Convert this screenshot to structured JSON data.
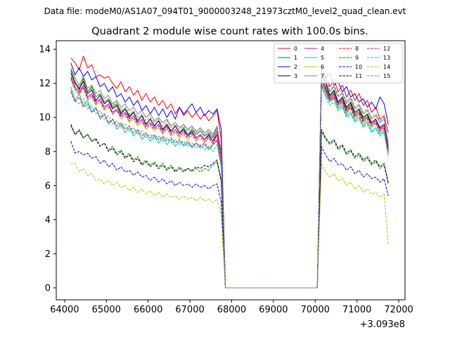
{
  "figure": {
    "suptitle": "Data file: modeM0/AS1A07_094T01_9000003248_21973cztM0_level2_quad_clean.evt",
    "x_offset_label": "+3.093e8"
  },
  "chart_data": {
    "type": "line",
    "title": "Quadrant 2 module wise count rates with 100.0s bins.",
    "xlabel": "",
    "ylabel": "",
    "xlim": [
      63800,
      72150
    ],
    "ylim": [
      -0.7,
      14.5
    ],
    "x_offset": 309300000,
    "xticks": [
      64000,
      65000,
      66000,
      67000,
      68000,
      69000,
      70000,
      71000,
      72000
    ],
    "xtick_labels": [
      "64000",
      "65000",
      "66000",
      "67000",
      "68000",
      "69000",
      "70000",
      "71000",
      "72000"
    ],
    "yticks": [
      0,
      2,
      4,
      6,
      8,
      10,
      12,
      14
    ],
    "ytick_labels": [
      "0",
      "2",
      "4",
      "6",
      "8",
      "10",
      "12",
      "14"
    ],
    "segments": [
      {
        "x_start": 64150,
        "x_end": 67750,
        "step": 100
      },
      {
        "x_start": 70150,
        "x_end": 71750,
        "step": 100
      }
    ],
    "gap": {
      "x_start": 67850,
      "x_end": 70050,
      "value": 0
    },
    "legend_location": "upper right",
    "series": [
      {
        "name": "0",
        "color": "#ff0000",
        "dash": "solid",
        "seg1": [
          13.5,
          13.2,
          12.8,
          13.6,
          12.9,
          13.1,
          12.4,
          12.5,
          12.3,
          12.4,
          12.0,
          11.7,
          12.1,
          11.5,
          11.8,
          11.3,
          11.6,
          11.0,
          11.4,
          10.9,
          11.2,
          10.7,
          11.0,
          10.5,
          10.8,
          10.2,
          10.6,
          10.1,
          10.4,
          10.0,
          10.3,
          9.9,
          10.2,
          9.8,
          10.1,
          10.4,
          8.7
        ],
        "seg2": [
          12.9,
          12.4,
          11.8,
          12.2,
          11.5,
          11.9,
          11.2,
          11.6,
          11.0,
          11.4,
          10.7,
          11.0,
          10.3,
          10.6,
          9.9,
          10.1,
          9.1
        ]
      },
      {
        "name": "1",
        "color": "#008000",
        "dash": "solid",
        "seg1": [
          12.8,
          12.1,
          11.6,
          12.3,
          11.5,
          11.8,
          11.2,
          11.4,
          10.9,
          11.1,
          10.6,
          10.8,
          10.3,
          10.5,
          10.1,
          10.3,
          9.8,
          10.1,
          9.6,
          9.9,
          9.5,
          9.8,
          9.3,
          9.6,
          9.2,
          9.5,
          9.1,
          9.4,
          9.0,
          9.3,
          9.0,
          9.2,
          8.9,
          9.1,
          8.8,
          9.4,
          7.8
        ],
        "seg2": [
          12.2,
          11.8,
          11.2,
          11.5,
          10.8,
          11.1,
          10.5,
          10.8,
          10.2,
          10.4,
          9.9,
          10.1,
          9.6,
          9.8,
          9.3,
          9.5,
          8.3
        ]
      },
      {
        "name": "2",
        "color": "#0000ff",
        "dash": "solid",
        "seg1": [
          13.2,
          12.5,
          12.9,
          12.4,
          12.7,
          12.2,
          12.4,
          11.8,
          12.0,
          11.5,
          11.8,
          11.2,
          11.4,
          10.9,
          11.2,
          10.7,
          11.0,
          10.4,
          10.7,
          10.2,
          10.6,
          10.1,
          10.5,
          10.0,
          10.4,
          9.9,
          10.6,
          10.2,
          10.5,
          10.8,
          10.3,
          10.6,
          10.1,
          10.4,
          10.2,
          10.5,
          9.3
        ],
        "seg2": [
          13.0,
          12.3,
          12.6,
          11.9,
          12.1,
          11.5,
          11.8,
          11.2,
          11.4,
          10.9,
          11.1,
          10.6,
          10.9,
          10.5,
          11.2,
          10.8,
          9.6
        ]
      },
      {
        "name": "3",
        "color": "#000000",
        "dash": "solid",
        "seg1": [
          12.6,
          12.0,
          11.7,
          12.1,
          11.4,
          11.6,
          11.0,
          11.3,
          10.8,
          11.0,
          10.5,
          10.7,
          10.2,
          10.5,
          10.0,
          10.3,
          9.8,
          10.1,
          9.6,
          9.9,
          9.5,
          9.8,
          9.3,
          9.6,
          9.2,
          9.5,
          9.1,
          9.3,
          8.9,
          9.2,
          8.8,
          9.0,
          8.7,
          9.0,
          8.6,
          9.0,
          7.6
        ],
        "seg2": [
          12.5,
          12.0,
          11.3,
          11.6,
          10.9,
          11.2,
          10.6,
          10.9,
          10.3,
          10.5,
          10.0,
          10.2,
          9.7,
          9.9,
          9.4,
          9.6,
          8.2
        ]
      },
      {
        "name": "4",
        "color": "#bf00bf",
        "dash": "solid",
        "seg1": [
          12.4,
          11.8,
          11.5,
          11.9,
          11.2,
          11.4,
          10.9,
          11.1,
          10.6,
          10.8,
          10.3,
          10.5,
          10.1,
          10.3,
          9.9,
          10.1,
          9.7,
          9.9,
          9.5,
          9.7,
          9.4,
          9.6,
          9.2,
          9.5,
          9.1,
          9.3,
          9.0,
          9.2,
          8.9,
          9.1,
          8.8,
          9.0,
          8.7,
          8.9,
          8.6,
          9.2,
          7.7
        ],
        "seg2": [
          12.3,
          11.7,
          11.1,
          11.4,
          10.8,
          11.0,
          10.4,
          10.7,
          10.1,
          10.3,
          9.8,
          10.0,
          9.6,
          9.8,
          9.3,
          9.5,
          8.1
        ]
      },
      {
        "name": "5",
        "color": "#00bfbf",
        "dash": "solid",
        "seg1": [
          11.8,
          11.0,
          11.4,
          10.7,
          11.0,
          10.3,
          10.6,
          9.9,
          10.2,
          9.6,
          9.9,
          9.3,
          9.6,
          9.1,
          9.4,
          8.9,
          9.2,
          8.7,
          9.0,
          8.6,
          8.9,
          8.5,
          8.8,
          8.4,
          8.7,
          8.3,
          8.6,
          8.3,
          8.5,
          8.2,
          8.5,
          8.2,
          8.4,
          8.1,
          8.4,
          8.6,
          7.2
        ],
        "seg2": [
          11.9,
          11.3,
          10.9,
          11.1,
          10.5,
          10.7,
          10.1,
          10.3,
          9.8,
          10.0,
          9.5,
          9.7,
          9.2,
          9.4,
          9.0,
          9.2,
          7.8
        ]
      },
      {
        "name": "6",
        "color": "#bfbf00",
        "dash": "solid",
        "seg1": [
          12.2,
          11.6,
          11.3,
          11.7,
          11.0,
          11.2,
          10.7,
          10.9,
          10.4,
          10.6,
          10.2,
          10.4,
          9.9,
          10.1,
          9.7,
          9.9,
          9.5,
          9.7,
          9.3,
          9.5,
          9.2,
          9.4,
          9.0,
          9.3,
          8.9,
          9.1,
          8.8,
          9.0,
          8.7,
          8.9,
          8.6,
          8.8,
          8.5,
          8.8,
          8.4,
          8.9,
          7.5
        ],
        "seg2": [
          12.0,
          11.5,
          10.9,
          11.2,
          10.6,
          10.8,
          10.2,
          10.5,
          9.9,
          10.1,
          9.6,
          9.8,
          9.4,
          9.6,
          9.1,
          9.3,
          7.9
        ]
      },
      {
        "name": "7",
        "color": "#808080",
        "dash": "solid",
        "seg1": [
          12.9,
          12.3,
          11.9,
          12.4,
          11.7,
          11.9,
          11.4,
          11.6,
          11.1,
          11.3,
          10.8,
          11.0,
          10.6,
          10.8,
          10.4,
          10.6,
          10.2,
          10.4,
          10.0,
          10.2,
          9.8,
          10.0,
          9.7,
          9.9,
          9.5,
          9.7,
          9.4,
          9.6,
          9.3,
          9.5,
          9.2,
          9.4,
          9.1,
          9.3,
          9.0,
          9.5,
          8.0
        ],
        "seg2": [
          12.6,
          12.1,
          11.5,
          11.8,
          11.2,
          11.4,
          10.8,
          11.1,
          10.5,
          10.7,
          10.2,
          10.4,
          9.9,
          10.1,
          9.7,
          9.9,
          8.5
        ]
      },
      {
        "name": "8",
        "color": "#ff0000",
        "dash": "dashed",
        "seg1": [
          11.5,
          10.9,
          11.2,
          10.6,
          10.8,
          10.3,
          10.5,
          10.0,
          10.2,
          9.7,
          9.9,
          9.5,
          9.7,
          9.3,
          9.5,
          9.1,
          9.3,
          8.9,
          9.1,
          8.8,
          9.0,
          8.7,
          8.9,
          8.6,
          8.8,
          8.5,
          8.7,
          8.4,
          8.6,
          8.3,
          8.5,
          8.3,
          8.5,
          8.2,
          8.4,
          8.7,
          7.3
        ],
        "seg2": [
          12.0,
          11.5,
          11.0,
          11.2,
          10.7,
          10.9,
          10.4,
          10.6,
          10.1,
          10.3,
          9.8,
          10.0,
          9.5,
          9.7,
          9.2,
          9.4,
          8.0
        ]
      },
      {
        "name": "9",
        "color": "#008000",
        "dash": "dashed",
        "seg1": [
          9.5,
          9.0,
          9.3,
          8.8,
          9.0,
          8.6,
          8.8,
          8.3,
          8.5,
          8.1,
          8.3,
          7.9,
          8.1,
          7.7,
          7.9,
          7.5,
          7.7,
          7.3,
          7.5,
          7.2,
          7.4,
          7.1,
          7.3,
          7.0,
          7.2,
          6.9,
          7.1,
          6.9,
          7.0,
          6.8,
          7.0,
          6.8,
          7.0,
          6.9,
          7.2,
          7.4,
          6.2
        ],
        "seg2": [
          9.2,
          8.7,
          8.4,
          8.6,
          8.1,
          8.3,
          7.8,
          8.0,
          7.6,
          7.8,
          7.4,
          7.6,
          7.2,
          7.4,
          7.0,
          7.2,
          6.1
        ]
      },
      {
        "name": "10",
        "color": "#0000ff",
        "dash": "dashed",
        "seg1": [
          8.6,
          7.9,
          8.0,
          7.8,
          7.9,
          7.6,
          7.7,
          7.3,
          7.5,
          7.1,
          7.3,
          6.9,
          7.1,
          6.8,
          6.9,
          6.6,
          6.8,
          6.5,
          6.6,
          6.3,
          6.5,
          6.2,
          6.4,
          6.1,
          6.3,
          6.0,
          6.2,
          6.0,
          6.1,
          5.9,
          6.1,
          5.9,
          6.0,
          5.8,
          6.0,
          6.1,
          5.0
        ],
        "seg2": [
          8.3,
          7.8,
          7.4,
          7.6,
          7.2,
          7.3,
          6.9,
          7.1,
          6.7,
          6.9,
          6.5,
          6.7,
          6.4,
          6.5,
          6.2,
          6.4,
          5.4
        ]
      },
      {
        "name": "11",
        "color": "#000000",
        "dash": "dashed",
        "seg1": [
          9.6,
          9.0,
          9.2,
          8.8,
          9.0,
          8.6,
          8.7,
          8.3,
          8.5,
          8.0,
          8.2,
          7.8,
          8.0,
          7.6,
          7.8,
          7.4,
          7.6,
          7.2,
          7.4,
          7.1,
          7.3,
          7.0,
          7.2,
          6.9,
          7.1,
          6.8,
          7.0,
          6.8,
          7.0,
          6.9,
          7.1,
          7.0,
          7.2,
          7.1,
          7.3,
          7.5,
          6.3
        ],
        "seg2": [
          9.3,
          8.8,
          8.5,
          8.7,
          8.2,
          8.4,
          7.9,
          8.1,
          7.7,
          7.9,
          7.5,
          7.7,
          7.3,
          7.5,
          7.1,
          7.3,
          6.2
        ]
      },
      {
        "name": "12",
        "color": "#bf00bf",
        "dash": "dashed",
        "seg1": [
          12.3,
          11.7,
          11.4,
          11.8,
          11.1,
          11.3,
          10.8,
          11.0,
          10.5,
          10.7,
          10.2,
          10.4,
          10.0,
          10.2,
          9.8,
          10.0,
          9.6,
          9.8,
          9.4,
          9.6,
          9.3,
          9.5,
          9.1,
          9.4,
          9.0,
          9.2,
          8.9,
          9.1,
          8.8,
          9.0,
          8.7,
          8.9,
          8.6,
          8.8,
          8.5,
          9.0,
          7.6
        ],
        "seg2": [
          12.2,
          11.6,
          11.0,
          11.3,
          10.7,
          10.9,
          10.3,
          10.6,
          10.0,
          10.2,
          9.7,
          9.9,
          9.5,
          9.7,
          9.2,
          9.4,
          8.0
        ]
      },
      {
        "name": "13",
        "color": "#00bfbf",
        "dash": "dashed",
        "seg1": [
          11.6,
          11.0,
          10.8,
          11.1,
          10.5,
          10.7,
          10.2,
          10.4,
          9.9,
          10.1,
          9.6,
          9.8,
          9.4,
          9.6,
          9.2,
          9.4,
          9.0,
          9.2,
          8.8,
          9.0,
          8.7,
          8.9,
          8.6,
          8.8,
          8.5,
          8.7,
          8.4,
          8.6,
          8.3,
          8.5,
          8.2,
          8.4,
          8.1,
          8.3,
          8.0,
          8.4,
          7.1
        ],
        "seg2": [
          11.8,
          11.2,
          10.7,
          10.9,
          10.4,
          10.6,
          10.0,
          10.2,
          9.7,
          9.9,
          9.4,
          9.6,
          9.1,
          9.3,
          8.9,
          9.1,
          7.7
        ]
      },
      {
        "name": "14",
        "color": "#bfbf00",
        "dash": "dashed",
        "seg1": [
          7.3,
          7.3,
          6.8,
          7.0,
          6.6,
          6.7,
          6.3,
          6.4,
          6.1,
          6.3,
          6.0,
          6.2,
          5.9,
          6.0,
          5.7,
          5.9,
          5.6,
          5.8,
          5.5,
          5.7,
          5.4,
          5.6,
          5.3,
          5.5,
          5.3,
          5.4,
          5.2,
          5.4,
          5.2,
          5.3,
          5.1,
          5.3,
          5.1,
          5.2,
          5.0,
          5.2,
          4.3
        ],
        "seg2": [
          7.3,
          6.8,
          6.5,
          6.7,
          6.3,
          6.4,
          6.0,
          6.2,
          5.8,
          6.0,
          5.6,
          5.8,
          5.5,
          5.6,
          5.3,
          5.5,
          2.5
        ]
      },
      {
        "name": "15",
        "color": "#808080",
        "dash": "dashed",
        "seg1": [
          12.7,
          12.1,
          11.8,
          12.2,
          11.5,
          11.7,
          11.2,
          11.4,
          10.9,
          11.1,
          10.7,
          10.9,
          10.4,
          10.6,
          10.2,
          10.4,
          10.0,
          10.2,
          9.8,
          10.0,
          9.7,
          9.9,
          9.5,
          9.8,
          9.4,
          9.6,
          9.3,
          9.5,
          9.2,
          9.4,
          9.1,
          9.3,
          9.0,
          9.2,
          8.9,
          9.4,
          7.9
        ],
        "seg2": [
          12.7,
          12.2,
          11.6,
          11.9,
          11.3,
          11.5,
          10.9,
          11.2,
          10.6,
          10.8,
          10.3,
          10.5,
          10.0,
          10.2,
          9.8,
          10.0,
          8.4
        ]
      }
    ]
  }
}
